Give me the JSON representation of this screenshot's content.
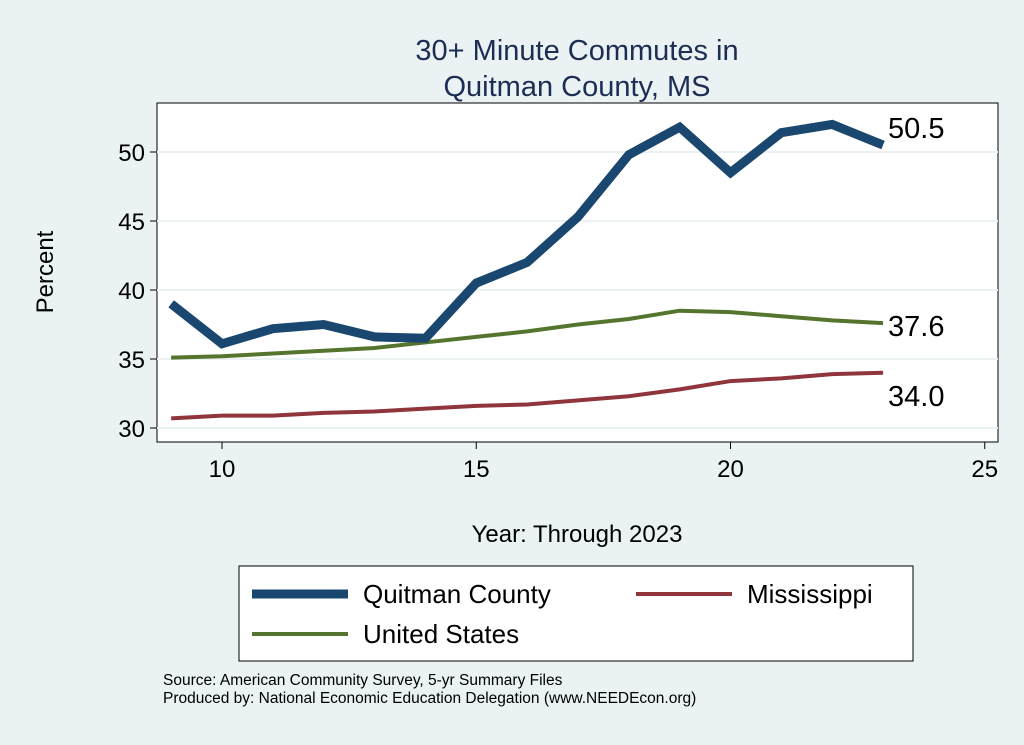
{
  "chart_data": {
    "type": "line",
    "title": [
      "30+ Minute Commutes in",
      "Quitman County, MS"
    ],
    "xlabel": "Year: Through 2023",
    "ylabel": "Percent",
    "xlim": [
      8.7,
      25.3
    ],
    "ylim": [
      29,
      53.7
    ],
    "xticks": [
      10,
      15,
      20,
      25
    ],
    "yticks": [
      30,
      35,
      40,
      45,
      50
    ],
    "grid": true,
    "legend_position": "bottom",
    "x": [
      9,
      10,
      11,
      12,
      13,
      14,
      15,
      16,
      17,
      18,
      19,
      20,
      21,
      22,
      23
    ],
    "series": [
      {
        "name": "Quitman County",
        "color": "#1a476f",
        "values": [
          39.0,
          36.1,
          37.2,
          37.5,
          36.6,
          36.5,
          40.5,
          42.0,
          45.3,
          49.8,
          51.8,
          48.5,
          51.4,
          52.0,
          50.5
        ],
        "end_label": "50.5"
      },
      {
        "name": "Mississippi",
        "color": "#90353b",
        "values": [
          30.7,
          30.9,
          30.9,
          31.1,
          31.2,
          31.4,
          31.6,
          31.7,
          32.0,
          32.3,
          32.8,
          33.4,
          33.6,
          33.9,
          34.0
        ],
        "end_label": "34.0"
      },
      {
        "name": "United States",
        "color": "#55752f",
        "values": [
          35.1,
          35.2,
          35.4,
          35.6,
          35.8,
          36.2,
          36.6,
          37.0,
          37.5,
          37.9,
          38.5,
          38.4,
          38.1,
          37.8,
          37.6
        ],
        "end_label": "37.6"
      }
    ]
  },
  "notes": {
    "source": "Source: American Community Survey, 5-yr Summary Files",
    "produced": "Produced by: National Economic Education Delegation (www.NEEDEcon.org)"
  }
}
